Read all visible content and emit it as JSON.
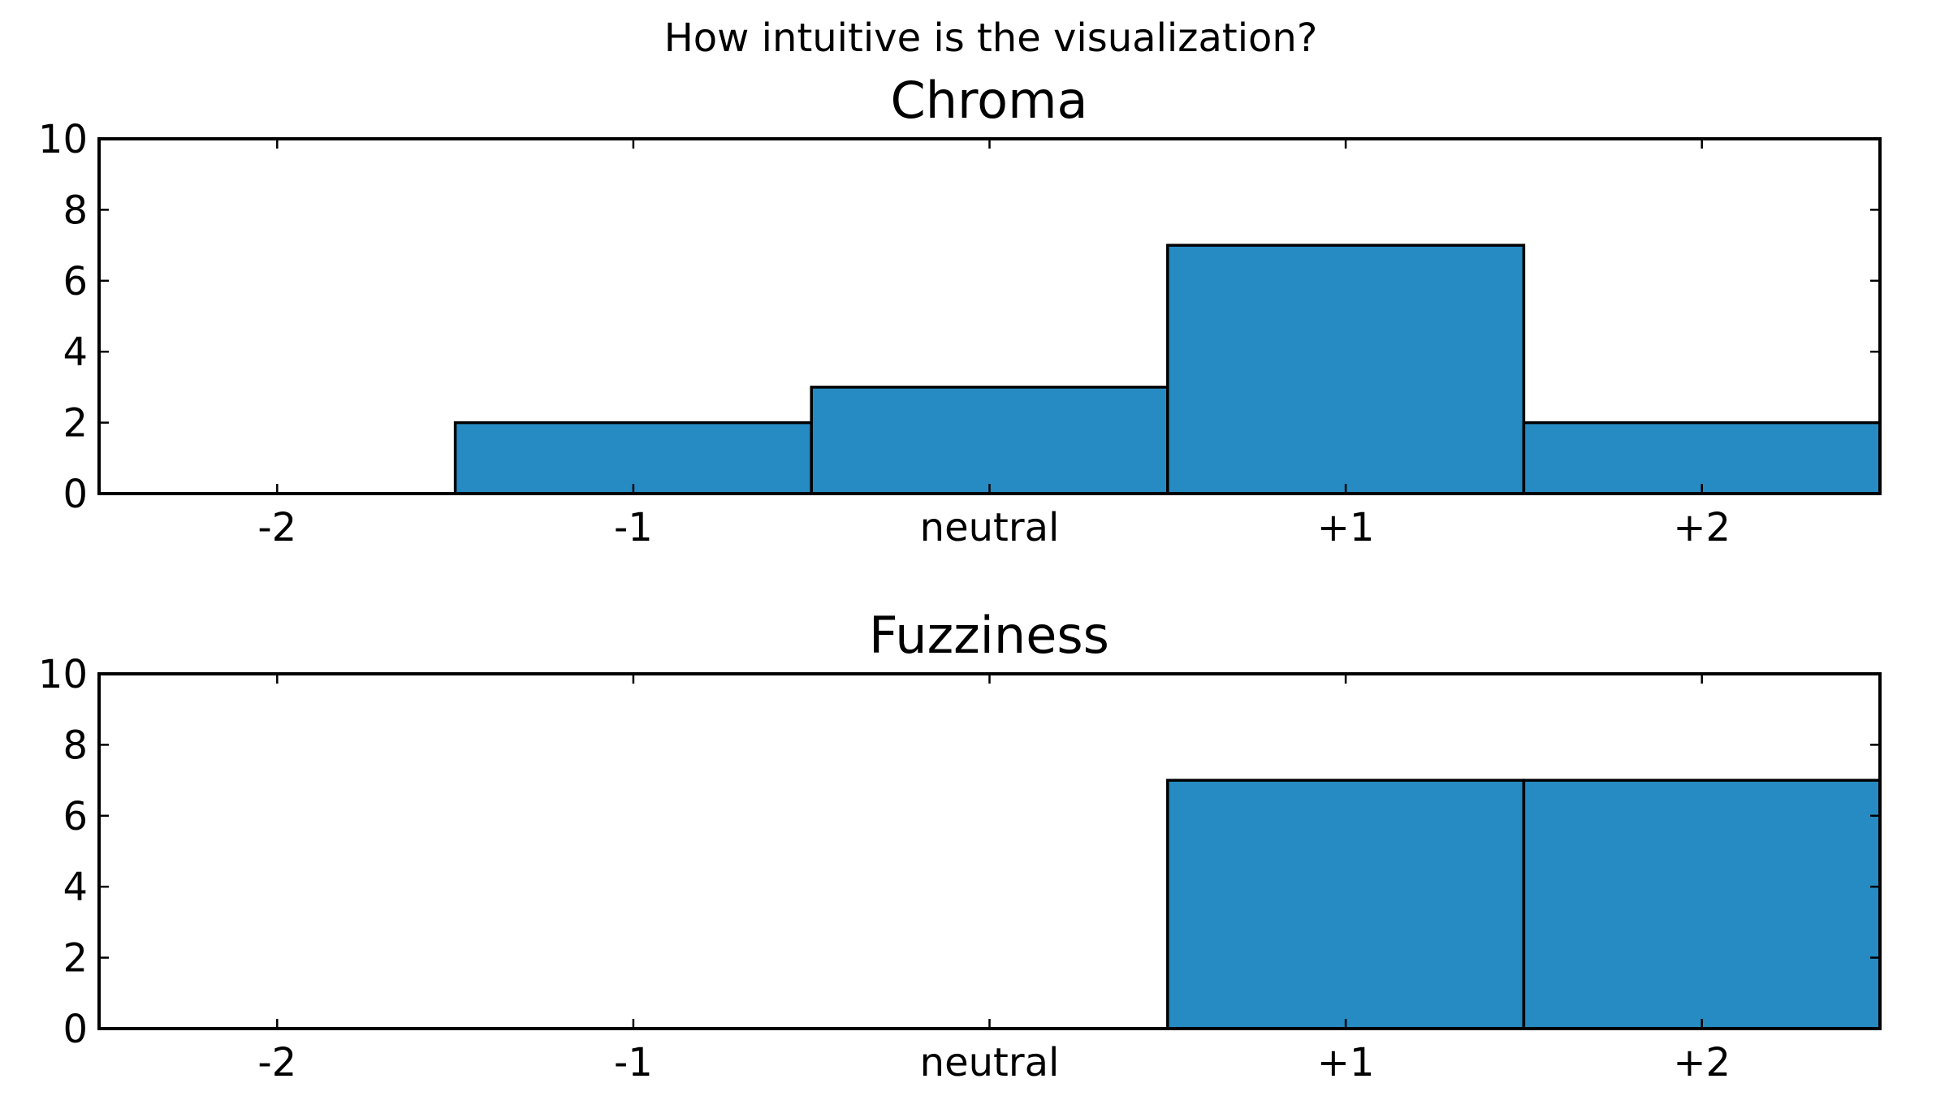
{
  "figure_title": "How intuitive is the visualization?",
  "colors": {
    "bar": "#268bc2",
    "edge": "#000000",
    "background": "#ffffff"
  },
  "chart_data": [
    {
      "type": "bar",
      "title": "Chroma",
      "xlabel": "",
      "ylabel": "",
      "categories": [
        "-2",
        "-1",
        "neutral",
        "+1",
        "+2"
      ],
      "values": [
        0,
        2,
        3,
        7,
        2
      ],
      "ylim": [
        0,
        10
      ],
      "yticks": [
        0,
        2,
        4,
        6,
        8,
        10
      ],
      "grid": false
    },
    {
      "type": "bar",
      "title": "Fuzziness",
      "xlabel": "",
      "ylabel": "",
      "categories": [
        "-2",
        "-1",
        "neutral",
        "+1",
        "+2"
      ],
      "values": [
        0,
        0,
        0,
        7,
        7
      ],
      "ylim": [
        0,
        10
      ],
      "yticks": [
        0,
        2,
        4,
        6,
        8,
        10
      ],
      "grid": false
    }
  ]
}
